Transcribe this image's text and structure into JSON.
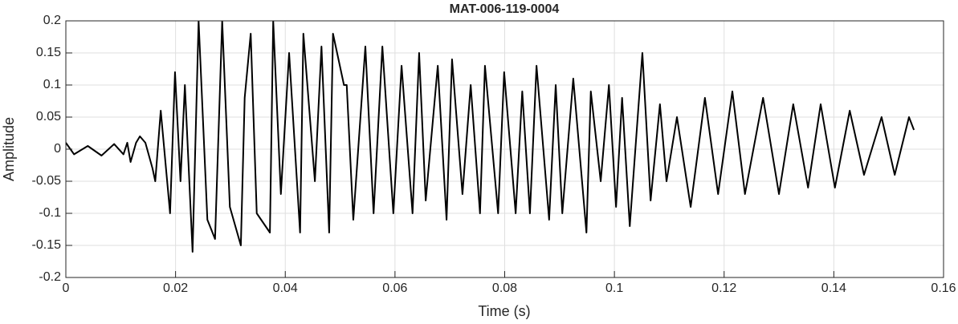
{
  "chart_data": {
    "type": "line",
    "title": "MAT-006-119-0004",
    "xlabel": "Time (s)",
    "ylabel": "Amplitude",
    "x": [
      0,
      0.0015,
      0.004,
      0.0065,
      0.0088,
      0.0105,
      0.0112,
      0.0118,
      0.0128,
      0.0135,
      0.0145,
      0.0158,
      0.0163,
      0.0173,
      0.019,
      0.0199,
      0.0209,
      0.0217,
      0.0231,
      0.0242,
      0.0258,
      0.0272,
      0.0285,
      0.0299,
      0.0319,
      0.0326,
      0.0337,
      0.0348,
      0.0372,
      0.0378,
      0.0392,
      0.0407,
      0.0427,
      0.0433,
      0.0454,
      0.0466,
      0.048,
      0.0487,
      0.0507,
      0.0512,
      0.0524,
      0.0546,
      0.0561,
      0.0577,
      0.0597,
      0.0612,
      0.0632,
      0.0644,
      0.0656,
      0.0678,
      0.0694,
      0.0704,
      0.0723,
      0.0738,
      0.0755,
      0.0764,
      0.0788,
      0.0799,
      0.082,
      0.0832,
      0.0846,
      0.0858,
      0.0881,
      0.0893,
      0.0905,
      0.0925,
      0.0949,
      0.0957,
      0.0975,
      0.099,
      0.1003,
      0.1014,
      0.1028,
      0.1051,
      0.1066,
      0.1083,
      0.1095,
      0.1114,
      0.1139,
      0.1165,
      0.1189,
      0.1215,
      0.1238,
      0.1271,
      0.13,
      0.1326,
      0.1353,
      0.1376,
      0.1402,
      0.1429,
      0.1455,
      0.1487,
      0.1511,
      0.1537,
      0.1546
    ],
    "series": [
      {
        "name": "MAT-006-119-0004",
        "color": "#000000",
        "values": [
          0.01,
          -0.008,
          0.005,
          -0.01,
          0.008,
          -0.008,
          0.01,
          -0.02,
          0.01,
          0.02,
          0.01,
          -0.03,
          -0.05,
          0.06,
          -0.1,
          0.12,
          -0.05,
          0.1,
          -0.16,
          0.2,
          -0.11,
          -0.14,
          0.2,
          -0.09,
          -0.15,
          0.08,
          0.18,
          -0.1,
          -0.13,
          0.2,
          -0.07,
          0.15,
          -0.13,
          0.18,
          -0.05,
          0.16,
          -0.13,
          0.18,
          0.1,
          0.1,
          -0.11,
          0.16,
          -0.1,
          0.16,
          -0.1,
          0.13,
          -0.1,
          0.15,
          -0.08,
          0.13,
          -0.11,
          0.14,
          -0.07,
          0.1,
          -0.1,
          0.13,
          -0.1,
          0.12,
          -0.1,
          0.09,
          -0.1,
          0.13,
          -0.11,
          0.1,
          -0.1,
          0.11,
          -0.13,
          0.09,
          -0.05,
          0.1,
          -0.09,
          0.08,
          -0.12,
          0.15,
          -0.08,
          0.07,
          -0.05,
          0.05,
          -0.09,
          0.08,
          -0.07,
          0.09,
          -0.07,
          0.08,
          -0.07,
          0.07,
          -0.06,
          0.07,
          -0.06,
          0.06,
          -0.04,
          0.05,
          -0.04,
          0.05,
          0.03
        ]
      }
    ],
    "xlim": [
      0,
      0.16
    ],
    "ylim": [
      -0.2,
      0.2
    ],
    "xticks": [
      0,
      0.02,
      0.04,
      0.06,
      0.08,
      0.1,
      0.12,
      0.14,
      0.16
    ],
    "yticks": [
      -0.2,
      -0.15,
      -0.1,
      -0.05,
      0,
      0.05,
      0.1,
      0.15,
      0.2
    ],
    "grid": true
  }
}
